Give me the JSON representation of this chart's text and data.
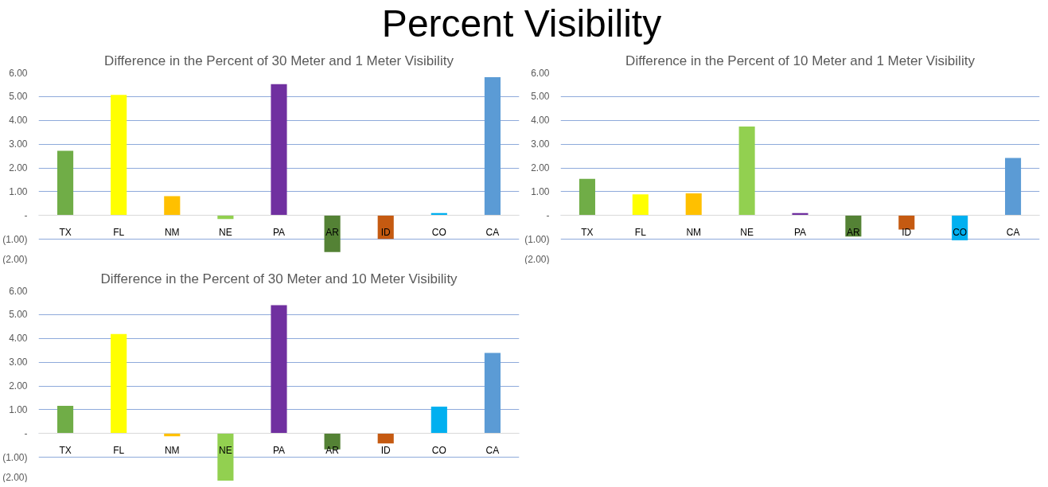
{
  "chart_data": [
    {
      "type": "other",
      "title": "Percent Visibility"
    },
    {
      "type": "bar",
      "title": "Difference in the Percent of 30 Meter and 1 Meter Visibility",
      "categories": [
        "TX",
        "FL",
        "NM",
        "NE",
        "PA",
        "AR",
        "ID",
        "CO",
        "CA"
      ],
      "values": [
        2.72,
        5.07,
        0.81,
        -0.15,
        5.52,
        -1.54,
        -0.99,
        0.1,
        5.82
      ],
      "colors": [
        "#70ad47",
        "#ffff00",
        "#ffc000",
        "#92d050",
        "#7030a0",
        "#548235",
        "#c55a11",
        "#00b0f0",
        "#5b9bd5"
      ],
      "ylim": [
        -2,
        6
      ],
      "yticks": [
        {
          "value": 6,
          "label": "6.00"
        },
        {
          "value": 5,
          "label": "5.00"
        },
        {
          "value": 4,
          "label": "4.00"
        },
        {
          "value": 3,
          "label": "3.00"
        },
        {
          "value": 2,
          "label": "2.00"
        },
        {
          "value": 1,
          "label": "1.00"
        },
        {
          "value": 0,
          "label": "-"
        },
        {
          "value": -1,
          "label": "(1.00)"
        },
        {
          "value": -2,
          "label": "(2.00)"
        }
      ],
      "grid": "y"
    },
    {
      "type": "bar",
      "title": "Difference in the Percent of 10 Meter and 1 Meter Visibility",
      "categories": [
        "TX",
        "FL",
        "NM",
        "NE",
        "PA",
        "AR",
        "ID",
        "CO",
        "CA"
      ],
      "values": [
        1.54,
        0.89,
        0.93,
        3.74,
        0.1,
        -0.89,
        -0.59,
        -1.05,
        2.42
      ],
      "colors": [
        "#70ad47",
        "#ffff00",
        "#ffc000",
        "#92d050",
        "#7030a0",
        "#548235",
        "#c55a11",
        "#00b0f0",
        "#5b9bd5"
      ],
      "ylim": [
        -2,
        6
      ],
      "yticks": [
        {
          "value": 6,
          "label": "6.00"
        },
        {
          "value": 5,
          "label": "5.00"
        },
        {
          "value": 4,
          "label": "4.00"
        },
        {
          "value": 3,
          "label": "3.00"
        },
        {
          "value": 2,
          "label": "2.00"
        },
        {
          "value": 1,
          "label": "1.00"
        },
        {
          "value": 0,
          "label": "-"
        },
        {
          "value": -1,
          "label": "(1.00)"
        },
        {
          "value": -2,
          "label": "(2.00)"
        }
      ],
      "grid": "y"
    },
    {
      "type": "bar",
      "title": "Difference in the Percent of 30 Meter and 10 Meter Visibility",
      "categories": [
        "TX",
        "FL",
        "NM",
        "NE",
        "PA",
        "AR",
        "ID",
        "CO",
        "CA"
      ],
      "values": [
        1.16,
        4.18,
        -0.12,
        -1.98,
        5.4,
        -0.67,
        -0.42,
        1.13,
        3.39
      ],
      "colors": [
        "#70ad47",
        "#ffff00",
        "#ffc000",
        "#92d050",
        "#7030a0",
        "#548235",
        "#c55a11",
        "#00b0f0",
        "#5b9bd5"
      ],
      "ylim": [
        -2,
        6
      ],
      "yticks": [
        {
          "value": 6,
          "label": "6.00"
        },
        {
          "value": 5,
          "label": "5.00"
        },
        {
          "value": 4,
          "label": "4.00"
        },
        {
          "value": 3,
          "label": "3.00"
        },
        {
          "value": 2,
          "label": "2.00"
        },
        {
          "value": 1,
          "label": "1.00"
        },
        {
          "value": 0,
          "label": "-"
        },
        {
          "value": -1,
          "label": "(1.00)"
        },
        {
          "value": -2,
          "label": "(2.00)"
        }
      ],
      "grid": "y"
    }
  ]
}
